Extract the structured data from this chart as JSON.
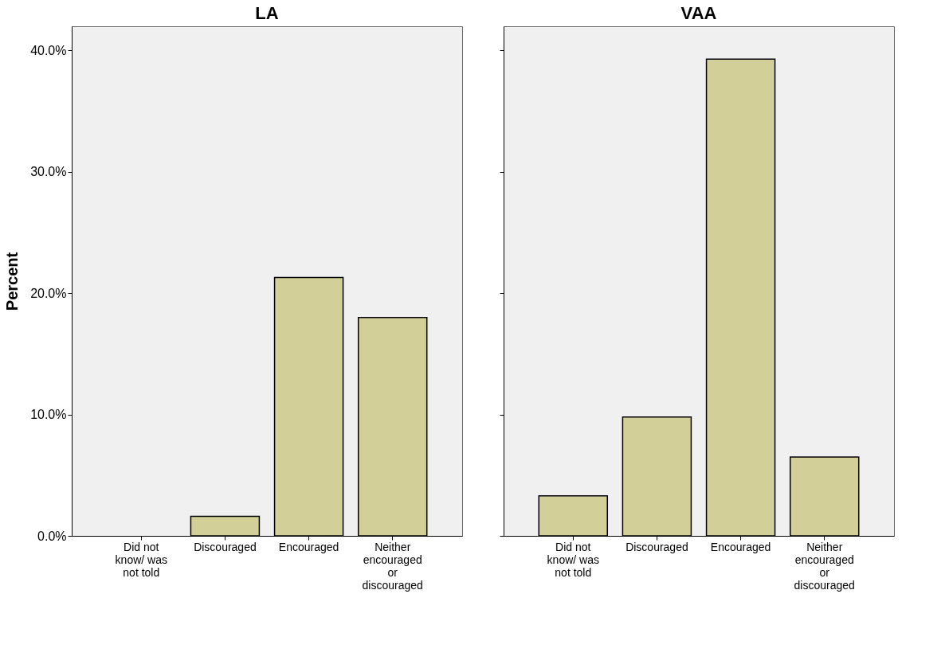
{
  "chart_data": [
    {
      "type": "bar",
      "title": "LA",
      "ylabel": "Percent",
      "categories": [
        "Did not know/ was not told",
        "Discouraged",
        "Encouraged",
        "Neither encouraged or discouraged"
      ],
      "values": [
        null,
        1.6,
        21.3,
        18.0
      ],
      "color": "#d3cf99",
      "ylim": [
        0,
        42
      ],
      "yticks": [
        {
          "value": 0,
          "label": "0.0%"
        },
        {
          "value": 10,
          "label": "10.0%"
        },
        {
          "value": 20,
          "label": "20.0%"
        },
        {
          "value": 30,
          "label": "30.0%"
        },
        {
          "value": 40,
          "label": "40.0%"
        }
      ],
      "grid": false
    },
    {
      "type": "bar",
      "title": "VAA",
      "categories": [
        "Did not know/ was not told",
        "Discouraged",
        "Encouraged",
        "Neither encouraged or discouraged"
      ],
      "values": [
        3.3,
        9.8,
        39.3,
        6.5
      ],
      "color": "#d3cf99",
      "ylim": [
        0,
        42
      ],
      "yticks": [
        {
          "value": 0,
          "label": null
        },
        {
          "value": 10,
          "label": null
        },
        {
          "value": 20,
          "label": null
        },
        {
          "value": 30,
          "label": null
        },
        {
          "value": 40,
          "label": null
        }
      ],
      "grid": false,
      "tick_labels": "x"
    }
  ]
}
